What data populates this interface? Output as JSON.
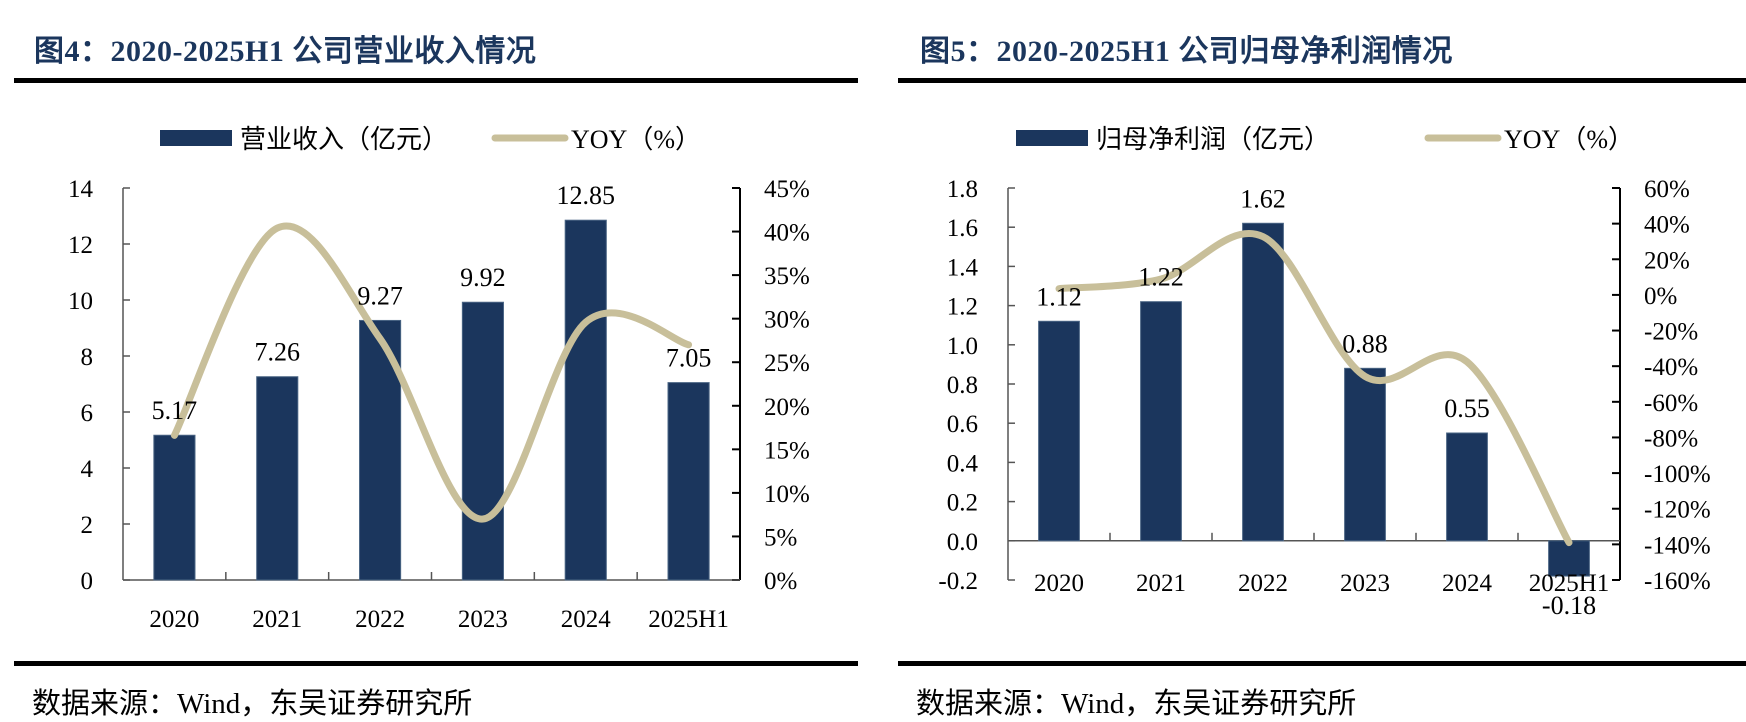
{
  "colors": {
    "bar": "#1b365d",
    "line": "#c8bf9a",
    "title": "#1b365d",
    "axis": "#000000"
  },
  "source_text": "数据来源：Wind，东吴证券研究所",
  "chart_data": [
    {
      "type": "bar+line",
      "title": "图4：2020-2025H1 公司营业收入情况",
      "categories": [
        "2020",
        "2021",
        "2022",
        "2023",
        "2024",
        "2025H1"
      ],
      "series": [
        {
          "name": "营业收入（亿元）",
          "type": "bar",
          "axis": "left",
          "values": [
            5.17,
            7.26,
            9.27,
            9.92,
            12.85,
            7.05
          ],
          "labels": [
            "5.17",
            "7.26",
            "9.27",
            "9.92",
            "12.85",
            "7.05"
          ]
        },
        {
          "name": "YOY（%）",
          "type": "line",
          "smooth": true,
          "axis": "right",
          "values": [
            16.6,
            40.4,
            27.7,
            7.0,
            29.6,
            27.0
          ]
        }
      ],
      "y_left": {
        "range": [
          0,
          14
        ],
        "ticks": [
          0,
          2,
          4,
          6,
          8,
          10,
          12,
          14
        ],
        "tick_labels": [
          "0",
          "2",
          "4",
          "6",
          "8",
          "10",
          "12",
          "14"
        ]
      },
      "y_right": {
        "range": [
          0,
          45
        ],
        "ticks": [
          0,
          5,
          10,
          15,
          20,
          25,
          30,
          35,
          40,
          45
        ],
        "tick_labels": [
          "0%",
          "5%",
          "10%",
          "15%",
          "20%",
          "25%",
          "30%",
          "35%",
          "40%",
          "45%"
        ]
      },
      "legend": {
        "position": "top",
        "items": [
          "营业收入（亿元）",
          "YOY（%）"
        ]
      },
      "grid": false,
      "source": "数据来源：Wind，东吴证券研究所"
    },
    {
      "type": "bar+line",
      "title": "图5：2020-2025H1 公司归母净利润情况",
      "categories": [
        "2020",
        "2021",
        "2022",
        "2023",
        "2024",
        "2025H1"
      ],
      "series": [
        {
          "name": "归母净利润（亿元）",
          "type": "bar",
          "axis": "left",
          "values": [
            1.12,
            1.22,
            1.62,
            0.88,
            0.55,
            -0.18
          ],
          "labels": [
            "1.12",
            "1.22",
            "1.62",
            "0.88",
            "0.55",
            "-0.18"
          ]
        },
        {
          "name": "YOY（%）",
          "type": "line",
          "smooth": true,
          "axis": "right",
          "values": [
            3.5,
            8.9,
            32.7,
            -45.7,
            -37.5,
            -139.0
          ]
        }
      ],
      "y_left": {
        "range": [
          -0.2,
          1.8
        ],
        "ticks": [
          -0.2,
          0.0,
          0.2,
          0.4,
          0.6,
          0.8,
          1.0,
          1.2,
          1.4,
          1.6,
          1.8
        ],
        "tick_labels": [
          "-0.2",
          "0.0",
          "0.2",
          "0.4",
          "0.6",
          "0.8",
          "1.0",
          "1.2",
          "1.4",
          "1.6",
          "1.8"
        ]
      },
      "y_right": {
        "range": [
          -160,
          60
        ],
        "ticks": [
          -160,
          -140,
          -120,
          -100,
          -80,
          -60,
          -40,
          -20,
          0,
          20,
          40,
          60
        ],
        "tick_labels": [
          "-160%",
          "-140%",
          "-120%",
          "-100%",
          "-80%",
          "-60%",
          "-40%",
          "-20%",
          "0%",
          "20%",
          "40%",
          "60%"
        ]
      },
      "legend": {
        "position": "top",
        "items": [
          "归母净利润（亿元）",
          "YOY（%）"
        ]
      },
      "grid": false,
      "source": "数据来源：Wind，东吴证券研究所"
    }
  ]
}
